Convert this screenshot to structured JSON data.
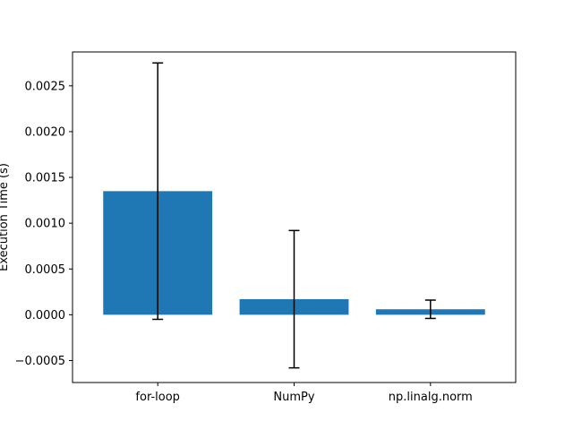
{
  "chart_data": {
    "type": "bar",
    "title": "",
    "xlabel": "",
    "ylabel": "Execution Time (s)",
    "categories": [
      "for-loop",
      "NumPy",
      "np.linalg.norm"
    ],
    "values": [
      0.00135,
      0.00017,
      6e-05
    ],
    "error": [
      0.0014,
      0.00075,
      0.0001
    ],
    "ylim": [
      -0.00074,
      0.00287
    ],
    "yticks": [
      -0.0005,
      0.0,
      0.0005,
      0.001,
      0.0015,
      0.002,
      0.0025
    ],
    "ytick_labels": [
      "−0.0005",
      "0.0000",
      "0.0005",
      "0.0010",
      "0.0015",
      "0.0020",
      "0.0025"
    ],
    "grid": false,
    "colors": {
      "bar": "#1f77b4",
      "error": "#000000",
      "axis": "#000000"
    }
  }
}
